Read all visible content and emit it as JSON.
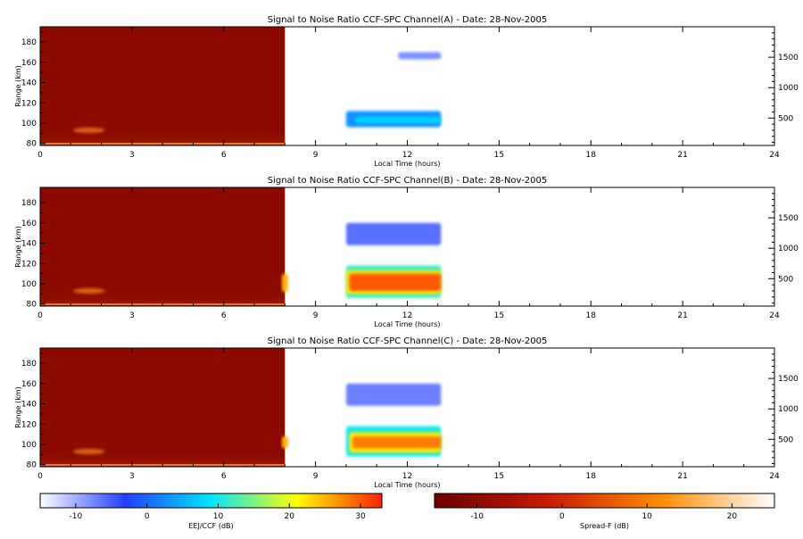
{
  "chart_data": {
    "type": "heatmap",
    "panels": [
      {
        "title": "Signal to Noise Ratio CCF-SPC Channel(A) - Date: 28-Nov-2005",
        "xlabel": "Local Time (hours)",
        "ylabel": "Range (km)",
        "xlim": [
          0,
          24
        ],
        "ylim": [
          78,
          195
        ],
        "xticks": [
          0,
          3,
          6,
          9,
          12,
          15,
          18,
          21,
          24
        ],
        "yticks": [
          80,
          100,
          120,
          140,
          160,
          180
        ],
        "right_axis_ticks": [
          500,
          1000,
          1500
        ],
        "right_axis_lim": [
          50,
          2000
        ],
        "spreadf_block": {
          "t0": 0,
          "t1": 8.0
        },
        "eej_blobs": [
          {
            "t0": 11.7,
            "t1": 13.1,
            "r0": 163,
            "r1": 170,
            "level": -8
          },
          {
            "t0": 10.0,
            "t1": 13.1,
            "r0": 96,
            "r1": 112,
            "level": 3
          },
          {
            "t0": 10.3,
            "t1": 13.1,
            "r0": 100,
            "r1": 106,
            "level": 8
          }
        ]
      },
      {
        "title": "Signal to Noise Ratio CCF-SPC Channel(B) - Date: 28-Nov-2005",
        "xlabel": "Local Time (hours)",
        "ylabel": "Range (km)",
        "xlim": [
          0,
          24
        ],
        "ylim": [
          78,
          195
        ],
        "xticks": [
          0,
          3,
          6,
          9,
          12,
          15,
          18,
          21,
          24
        ],
        "yticks": [
          80,
          100,
          120,
          140,
          160,
          180
        ],
        "right_axis_ticks": [
          500,
          1000,
          1500
        ],
        "right_axis_lim": [
          50,
          2000
        ],
        "spreadf_block": {
          "t0": 0,
          "t1": 8.0
        },
        "eej_blobs": [
          {
            "t0": 10.0,
            "t1": 13.1,
            "r0": 138,
            "r1": 160,
            "level": -6
          },
          {
            "t0": 10.0,
            "t1": 13.1,
            "r0": 86,
            "r1": 118,
            "level": 12
          },
          {
            "t0": 10.0,
            "t1": 13.1,
            "r0": 90,
            "r1": 113,
            "level": 22
          },
          {
            "t0": 10.1,
            "t1": 13.1,
            "r0": 93,
            "r1": 110,
            "level": 30
          },
          {
            "t0": 7.9,
            "t1": 8.1,
            "r0": 92,
            "r1": 110,
            "level": 25
          }
        ]
      },
      {
        "title": "Signal to Noise Ratio CCF-SPC Channel(C) - Date: 28-Nov-2005",
        "xlabel": "Local Time (hours)",
        "ylabel": "Range (km)",
        "xlim": [
          0,
          24
        ],
        "ylim": [
          78,
          195
        ],
        "xticks": [
          0,
          3,
          6,
          9,
          12,
          15,
          18,
          21,
          24
        ],
        "yticks": [
          80,
          100,
          120,
          140,
          160,
          180
        ],
        "right_axis_ticks": [
          500,
          1000,
          1500
        ],
        "right_axis_lim": [
          50,
          2000
        ],
        "spreadf_block": {
          "t0": 0,
          "t1": 8.0
        },
        "eej_blobs": [
          {
            "t0": 10.0,
            "t1": 13.1,
            "r0": 138,
            "r1": 160,
            "level": -7
          },
          {
            "t0": 10.0,
            "t1": 13.1,
            "r0": 88,
            "r1": 118,
            "level": 10
          },
          {
            "t0": 10.1,
            "t1": 13.1,
            "r0": 92,
            "r1": 112,
            "level": 22
          },
          {
            "t0": 10.2,
            "t1": 13.1,
            "r0": 96,
            "r1": 108,
            "level": 28
          },
          {
            "t0": 7.9,
            "t1": 8.1,
            "r0": 96,
            "r1": 108,
            "level": 25
          }
        ]
      }
    ],
    "colorbars": [
      {
        "label": "EEJ/CCF (dB)",
        "range": [
          -15,
          33
        ],
        "ticks": [
          -10,
          0,
          10,
          20,
          30
        ],
        "colors": [
          "#ffffff",
          "#2040ff",
          "#00e5ff",
          "#ffff00",
          "#ff2000"
        ]
      },
      {
        "label": "Spread-F (dB)",
        "range": [
          -15,
          25
        ],
        "ticks": [
          -10,
          0,
          10,
          20
        ],
        "colors": [
          "#6a0000",
          "#c81a00",
          "#ff8c00",
          "#ffffff"
        ]
      }
    ]
  }
}
